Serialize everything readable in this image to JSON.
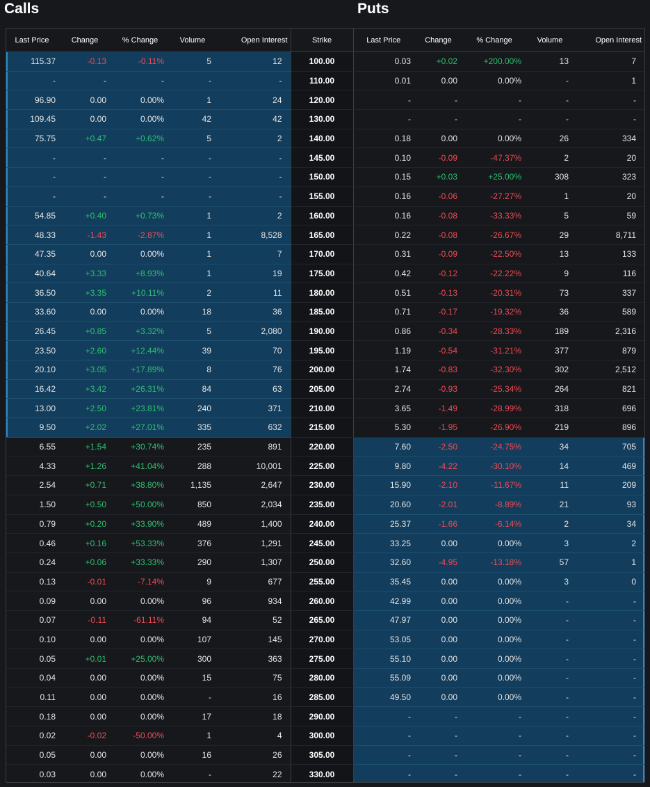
{
  "titles": {
    "calls": "Calls",
    "puts": "Puts"
  },
  "headers": {
    "calls": [
      "Last Price",
      "Change",
      "% Change",
      "Volume",
      "Open Interest"
    ],
    "strike": "Strike",
    "puts": [
      "Last Price",
      "Change",
      "% Change",
      "Volume",
      "Open Interest"
    ]
  },
  "colors": {
    "background": "#16181c",
    "itm_highlight": "#123d5c",
    "positive": "#2fbf71",
    "negative": "#ef4b55",
    "border": "#3a3d44"
  },
  "rows": [
    {
      "strike": "100.00",
      "call_itm": true,
      "put_itm": false,
      "call": [
        "115.37",
        "-0.13",
        "-0.11%",
        "5",
        "12"
      ],
      "put": [
        "0.03",
        "+0.02",
        "+200.00%",
        "13",
        "7"
      ]
    },
    {
      "strike": "110.00",
      "call_itm": true,
      "put_itm": false,
      "call": [
        "-",
        "-",
        "-",
        "-",
        "-"
      ],
      "put": [
        "0.01",
        "0.00",
        "0.00%",
        "-",
        "1"
      ]
    },
    {
      "strike": "120.00",
      "call_itm": true,
      "put_itm": false,
      "call": [
        "96.90",
        "0.00",
        "0.00%",
        "1",
        "24"
      ],
      "put": [
        "-",
        "-",
        "-",
        "-",
        "-"
      ]
    },
    {
      "strike": "130.00",
      "call_itm": true,
      "put_itm": false,
      "call": [
        "109.45",
        "0.00",
        "0.00%",
        "42",
        "42"
      ],
      "put": [
        "-",
        "-",
        "-",
        "-",
        "-"
      ]
    },
    {
      "strike": "140.00",
      "call_itm": true,
      "put_itm": false,
      "call": [
        "75.75",
        "+0.47",
        "+0.62%",
        "5",
        "2"
      ],
      "put": [
        "0.18",
        "0.00",
        "0.00%",
        "26",
        "334"
      ]
    },
    {
      "strike": "145.00",
      "call_itm": true,
      "put_itm": false,
      "call": [
        "-",
        "-",
        "-",
        "-",
        "-"
      ],
      "put": [
        "0.10",
        "-0.09",
        "-47.37%",
        "2",
        "20"
      ]
    },
    {
      "strike": "150.00",
      "call_itm": true,
      "put_itm": false,
      "call": [
        "-",
        "-",
        "-",
        "-",
        "-"
      ],
      "put": [
        "0.15",
        "+0.03",
        "+25.00%",
        "308",
        "323"
      ]
    },
    {
      "strike": "155.00",
      "call_itm": true,
      "put_itm": false,
      "call": [
        "-",
        "-",
        "-",
        "-",
        "-"
      ],
      "put": [
        "0.16",
        "-0.06",
        "-27.27%",
        "1",
        "20"
      ]
    },
    {
      "strike": "160.00",
      "call_itm": true,
      "put_itm": false,
      "call": [
        "54.85",
        "+0.40",
        "+0.73%",
        "1",
        "2"
      ],
      "put": [
        "0.16",
        "-0.08",
        "-33.33%",
        "5",
        "59"
      ]
    },
    {
      "strike": "165.00",
      "call_itm": true,
      "put_itm": false,
      "call": [
        "48.33",
        "-1.43",
        "-2.87%",
        "1",
        "8,528"
      ],
      "put": [
        "0.22",
        "-0.08",
        "-26.67%",
        "29",
        "8,711"
      ]
    },
    {
      "strike": "170.00",
      "call_itm": true,
      "put_itm": false,
      "call": [
        "47.35",
        "0.00",
        "0.00%",
        "1",
        "7"
      ],
      "put": [
        "0.31",
        "-0.09",
        "-22.50%",
        "13",
        "133"
      ]
    },
    {
      "strike": "175.00",
      "call_itm": true,
      "put_itm": false,
      "call": [
        "40.64",
        "+3.33",
        "+8.93%",
        "1",
        "19"
      ],
      "put": [
        "0.42",
        "-0.12",
        "-22.22%",
        "9",
        "116"
      ]
    },
    {
      "strike": "180.00",
      "call_itm": true,
      "put_itm": false,
      "call": [
        "36.50",
        "+3.35",
        "+10.11%",
        "2",
        "11"
      ],
      "put": [
        "0.51",
        "-0.13",
        "-20.31%",
        "73",
        "337"
      ]
    },
    {
      "strike": "185.00",
      "call_itm": true,
      "put_itm": false,
      "call": [
        "33.60",
        "0.00",
        "0.00%",
        "18",
        "36"
      ],
      "put": [
        "0.71",
        "-0.17",
        "-19.32%",
        "36",
        "589"
      ]
    },
    {
      "strike": "190.00",
      "call_itm": true,
      "put_itm": false,
      "call": [
        "26.45",
        "+0.85",
        "+3.32%",
        "5",
        "2,080"
      ],
      "put": [
        "0.86",
        "-0.34",
        "-28.33%",
        "189",
        "2,316"
      ]
    },
    {
      "strike": "195.00",
      "call_itm": true,
      "put_itm": false,
      "call": [
        "23.50",
        "+2.60",
        "+12.44%",
        "39",
        "70"
      ],
      "put": [
        "1.19",
        "-0.54",
        "-31.21%",
        "377",
        "879"
      ]
    },
    {
      "strike": "200.00",
      "call_itm": true,
      "put_itm": false,
      "call": [
        "20.10",
        "+3.05",
        "+17.89%",
        "8",
        "76"
      ],
      "put": [
        "1.74",
        "-0.83",
        "-32.30%",
        "302",
        "2,512"
      ]
    },
    {
      "strike": "205.00",
      "call_itm": true,
      "put_itm": false,
      "call": [
        "16.42",
        "+3.42",
        "+26.31%",
        "84",
        "63"
      ],
      "put": [
        "2.74",
        "-0.93",
        "-25.34%",
        "264",
        "821"
      ]
    },
    {
      "strike": "210.00",
      "call_itm": true,
      "put_itm": false,
      "call": [
        "13.00",
        "+2.50",
        "+23.81%",
        "240",
        "371"
      ],
      "put": [
        "3.65",
        "-1.49",
        "-28.99%",
        "318",
        "696"
      ]
    },
    {
      "strike": "215.00",
      "call_itm": true,
      "put_itm": false,
      "call": [
        "9.50",
        "+2.02",
        "+27.01%",
        "335",
        "632"
      ],
      "put": [
        "5.30",
        "-1.95",
        "-26.90%",
        "219",
        "896"
      ]
    },
    {
      "strike": "220.00",
      "call_itm": false,
      "put_itm": true,
      "call": [
        "6.55",
        "+1.54",
        "+30.74%",
        "235",
        "891"
      ],
      "put": [
        "7.60",
        "-2.50",
        "-24.75%",
        "34",
        "705"
      ]
    },
    {
      "strike": "225.00",
      "call_itm": false,
      "put_itm": true,
      "call": [
        "4.33",
        "+1.26",
        "+41.04%",
        "288",
        "10,001"
      ],
      "put": [
        "9.80",
        "-4.22",
        "-30.10%",
        "14",
        "469"
      ]
    },
    {
      "strike": "230.00",
      "call_itm": false,
      "put_itm": true,
      "call": [
        "2.54",
        "+0.71",
        "+38.80%",
        "1,135",
        "2,647"
      ],
      "put": [
        "15.90",
        "-2.10",
        "-11.67%",
        "11",
        "209"
      ]
    },
    {
      "strike": "235.00",
      "call_itm": false,
      "put_itm": true,
      "call": [
        "1.50",
        "+0.50",
        "+50.00%",
        "850",
        "2,034"
      ],
      "put": [
        "20.60",
        "-2.01",
        "-8.89%",
        "21",
        "93"
      ]
    },
    {
      "strike": "240.00",
      "call_itm": false,
      "put_itm": true,
      "call": [
        "0.79",
        "+0.20",
        "+33.90%",
        "489",
        "1,400"
      ],
      "put": [
        "25.37",
        "-1.66",
        "-6.14%",
        "2",
        "34"
      ]
    },
    {
      "strike": "245.00",
      "call_itm": false,
      "put_itm": true,
      "call": [
        "0.46",
        "+0.16",
        "+53.33%",
        "376",
        "1,291"
      ],
      "put": [
        "33.25",
        "0.00",
        "0.00%",
        "3",
        "2"
      ]
    },
    {
      "strike": "250.00",
      "call_itm": false,
      "put_itm": true,
      "call": [
        "0.24",
        "+0.06",
        "+33.33%",
        "290",
        "1,307"
      ],
      "put": [
        "32.60",
        "-4.95",
        "-13.18%",
        "57",
        "1"
      ]
    },
    {
      "strike": "255.00",
      "call_itm": false,
      "put_itm": true,
      "call": [
        "0.13",
        "-0.01",
        "-7.14%",
        "9",
        "677"
      ],
      "put": [
        "35.45",
        "0.00",
        "0.00%",
        "3",
        "0"
      ]
    },
    {
      "strike": "260.00",
      "call_itm": false,
      "put_itm": true,
      "call": [
        "0.09",
        "0.00",
        "0.00%",
        "96",
        "934"
      ],
      "put": [
        "42.99",
        "0.00",
        "0.00%",
        "-",
        "-"
      ]
    },
    {
      "strike": "265.00",
      "call_itm": false,
      "put_itm": true,
      "call": [
        "0.07",
        "-0.11",
        "-61.11%",
        "94",
        "52"
      ],
      "put": [
        "47.97",
        "0.00",
        "0.00%",
        "-",
        "-"
      ]
    },
    {
      "strike": "270.00",
      "call_itm": false,
      "put_itm": true,
      "call": [
        "0.10",
        "0.00",
        "0.00%",
        "107",
        "145"
      ],
      "put": [
        "53.05",
        "0.00",
        "0.00%",
        "-",
        "-"
      ]
    },
    {
      "strike": "275.00",
      "call_itm": false,
      "put_itm": true,
      "call": [
        "0.05",
        "+0.01",
        "+25.00%",
        "300",
        "363"
      ],
      "put": [
        "55.10",
        "0.00",
        "0.00%",
        "-",
        "-"
      ]
    },
    {
      "strike": "280.00",
      "call_itm": false,
      "put_itm": true,
      "call": [
        "0.04",
        "0.00",
        "0.00%",
        "15",
        "75"
      ],
      "put": [
        "55.09",
        "0.00",
        "0.00%",
        "-",
        "-"
      ]
    },
    {
      "strike": "285.00",
      "call_itm": false,
      "put_itm": true,
      "call": [
        "0.11",
        "0.00",
        "0.00%",
        "-",
        "16"
      ],
      "put": [
        "49.50",
        "0.00",
        "0.00%",
        "-",
        "-"
      ]
    },
    {
      "strike": "290.00",
      "call_itm": false,
      "put_itm": true,
      "call": [
        "0.18",
        "0.00",
        "0.00%",
        "17",
        "18"
      ],
      "put": [
        "-",
        "-",
        "-",
        "-",
        "-"
      ]
    },
    {
      "strike": "300.00",
      "call_itm": false,
      "put_itm": true,
      "call": [
        "0.02",
        "-0.02",
        "-50.00%",
        "1",
        "4"
      ],
      "put": [
        "-",
        "-",
        "-",
        "-",
        "-"
      ]
    },
    {
      "strike": "305.00",
      "call_itm": false,
      "put_itm": true,
      "call": [
        "0.05",
        "0.00",
        "0.00%",
        "16",
        "26"
      ],
      "put": [
        "-",
        "-",
        "-",
        "-",
        "-"
      ]
    },
    {
      "strike": "330.00",
      "call_itm": false,
      "put_itm": true,
      "call": [
        "0.03",
        "0.00",
        "0.00%",
        "-",
        "22"
      ],
      "put": [
        "-",
        "-",
        "-",
        "-",
        "-"
      ]
    }
  ]
}
